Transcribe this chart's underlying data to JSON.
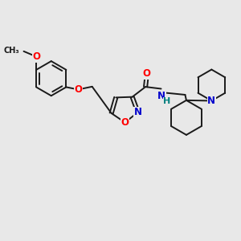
{
  "bg_color": "#e8e8e8",
  "bond_color": "#1a1a1a",
  "o_color": "#ff0000",
  "n_color": "#0000cc",
  "nh_color": "#008080",
  "figsize": [
    3.0,
    3.0
  ],
  "dpi": 100,
  "lw": 1.4,
  "fs": 8.5,
  "xlim": [
    0,
    10
  ],
  "ylim": [
    0,
    10
  ]
}
